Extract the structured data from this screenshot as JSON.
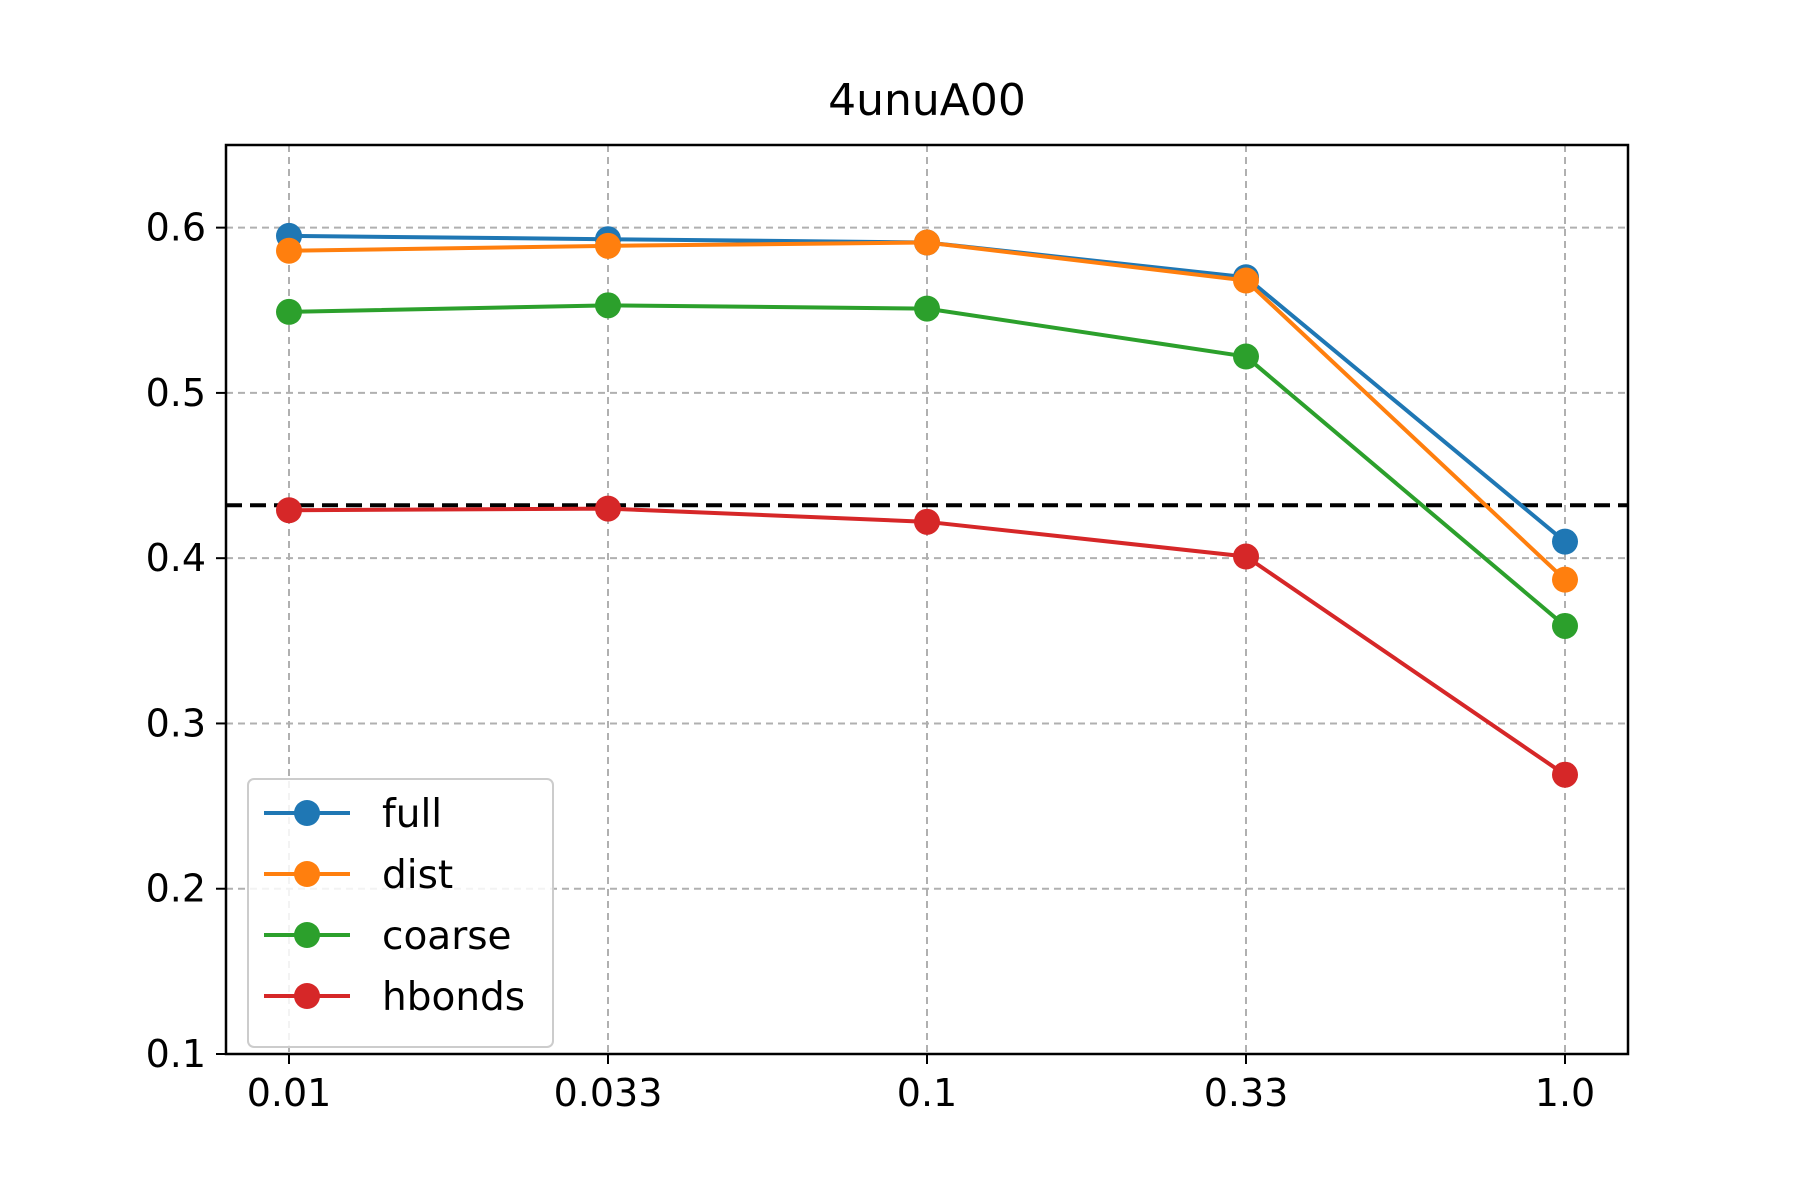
{
  "chart_data": {
    "type": "line",
    "title": "4unuA00",
    "xlabel": "",
    "ylabel": "",
    "categories": [
      "0.01",
      "0.033",
      "0.1",
      "0.33",
      "1.0"
    ],
    "ylim": [
      0.1,
      0.65
    ],
    "yticks": [
      "0.1",
      "0.2",
      "0.3",
      "0.4",
      "0.5",
      "0.6"
    ],
    "grid": true,
    "legend_position": "lower-left",
    "reference_line": {
      "y": 0.432,
      "color": "#000000",
      "style": "dashed"
    },
    "series": [
      {
        "name": "full",
        "color": "#1f77b4",
        "values": [
          0.595,
          0.593,
          0.591,
          0.57,
          0.41
        ]
      },
      {
        "name": "dist",
        "color": "#ff7f0e",
        "values": [
          0.586,
          0.589,
          0.591,
          0.568,
          0.387
        ]
      },
      {
        "name": "coarse",
        "color": "#2ca02c",
        "values": [
          0.549,
          0.553,
          0.551,
          0.522,
          0.359
        ]
      },
      {
        "name": "hbonds",
        "color": "#d62728",
        "values": [
          0.429,
          0.43,
          0.422,
          0.401,
          0.269
        ]
      }
    ]
  }
}
